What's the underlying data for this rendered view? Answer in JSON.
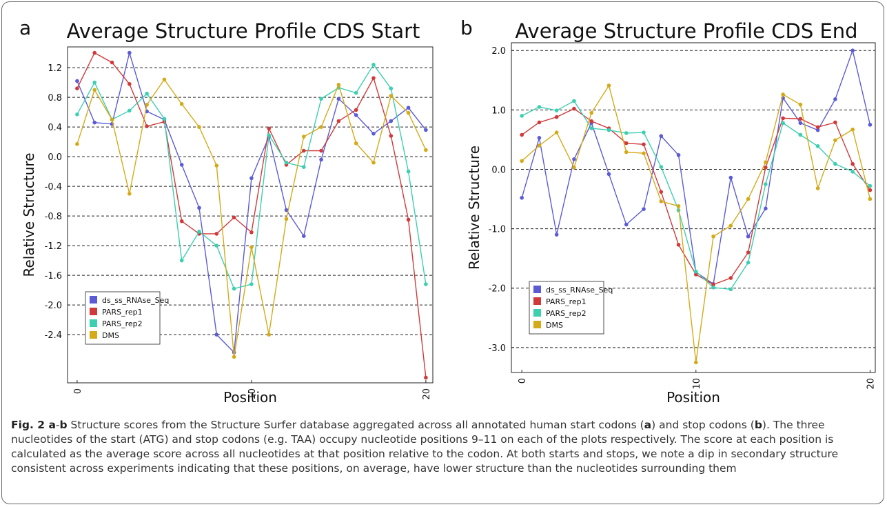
{
  "chart_data": [
    {
      "type": "line",
      "panel_label": "a",
      "title": "Average Structure Profile CDS Start",
      "x_label": "Position",
      "y_label": "Relative Structure",
      "x": [
        0,
        1,
        2,
        3,
        4,
        5,
        6,
        7,
        8,
        9,
        10,
        11,
        12,
        13,
        14,
        15,
        16,
        17,
        18,
        19,
        20
      ],
      "xlim": [
        -0.55,
        20.4
      ],
      "xticks": [
        0,
        10,
        20
      ],
      "ylim": [
        -3.05,
        1.48
      ],
      "yticks": [
        1.2,
        0.8,
        0.4,
        {
          "value": 0,
          "label": "0.0"
        },
        -0.4,
        -0.8,
        -1.2,
        -1.6,
        {
          "value": -2,
          "label": "-2.0"
        },
        -2.4
      ],
      "grid": true,
      "legend": "lower left",
      "series": [
        {
          "name": "ds_ss_RNAse_Seq",
          "color": "#5b5bd6",
          "values": [
            1.02,
            0.46,
            0.44,
            1.4,
            0.61,
            0.5,
            -0.11,
            -0.69,
            -2.4,
            -2.64,
            -0.29,
            0.27,
            -0.72,
            -1.07,
            -0.04,
            0.78,
            0.56,
            0.31,
            0.48,
            0.66,
            0.36
          ]
        },
        {
          "name": "PARS_rep1",
          "color": "#d03a3a",
          "values": [
            0.92,
            1.4,
            1.27,
            0.98,
            0.41,
            0.47,
            -0.87,
            -1.04,
            -1.04,
            -0.82,
            -1.02,
            0.38,
            -0.11,
            0.08,
            0.08,
            0.48,
            0.63,
            1.06,
            0.28,
            -0.85,
            -2.98
          ]
        },
        {
          "name": "PARS_rep2",
          "color": "#3ccfb0",
          "values": [
            0.57,
            1.0,
            0.5,
            0.62,
            0.85,
            0.51,
            -1.4,
            -1.01,
            -1.2,
            -1.78,
            -1.72,
            0.29,
            -0.08,
            -0.14,
            0.78,
            0.93,
            0.86,
            1.24,
            0.92,
            -0.2,
            -1.72
          ]
        },
        {
          "name": "DMS",
          "color": "#d4aa18",
          "values": [
            0.17,
            0.9,
            0.5,
            -0.5,
            0.7,
            1.04,
            0.71,
            0.4,
            -0.12,
            -2.7,
            -1.22,
            -2.4,
            -0.84,
            0.27,
            0.4,
            0.97,
            0.18,
            -0.08,
            0.82,
            0.59,
            0.09
          ]
        }
      ]
    },
    {
      "type": "line",
      "panel_label": "b",
      "title": "Average Structure Profile CDS End",
      "x_label": "Position",
      "y_label": "Relative Structure",
      "x": [
        0,
        1,
        2,
        3,
        4,
        5,
        6,
        7,
        8,
        9,
        10,
        11,
        12,
        13,
        14,
        15,
        16,
        17,
        18,
        19,
        20
      ],
      "xlim": [
        -0.6,
        20.3
      ],
      "xticks": [
        0,
        10,
        20
      ],
      "ylim": [
        -3.42,
        2.13
      ],
      "yticks": [
        {
          "value": 2,
          "label": "2.0"
        },
        {
          "value": 1,
          "label": "1.0"
        },
        {
          "value": 0,
          "label": "0.0"
        },
        {
          "value": -1,
          "label": "-1.0"
        },
        {
          "value": -2,
          "label": "-2.0"
        },
        {
          "value": -3,
          "label": "-3.0"
        }
      ],
      "grid": true,
      "legend": "lower left",
      "series": [
        {
          "name": "ds_ss_RNAse_Seq",
          "color": "#5b5bd6",
          "values": [
            -0.48,
            0.53,
            -1.1,
            0.17,
            0.78,
            -0.08,
            -0.93,
            -0.67,
            0.56,
            0.24,
            -1.73,
            -1.93,
            -0.14,
            -1.13,
            -0.66,
            1.2,
            0.78,
            0.66,
            1.18,
            2.0,
            0.75
          ]
        },
        {
          "name": "PARS_rep1",
          "color": "#d03a3a",
          "values": [
            0.58,
            0.79,
            0.88,
            1.02,
            0.81,
            0.69,
            0.44,
            0.42,
            -0.38,
            -1.27,
            -1.77,
            -1.94,
            -1.83,
            -1.4,
            0.03,
            0.86,
            0.85,
            0.71,
            0.79,
            0.09,
            -0.35
          ]
        },
        {
          "name": "PARS_rep2",
          "color": "#3ccfb0",
          "values": [
            0.9,
            1.05,
            0.99,
            1.15,
            0.69,
            0.66,
            0.61,
            0.62,
            0.04,
            -0.69,
            -1.72,
            -1.99,
            -2.02,
            -1.57,
            -0.25,
            0.78,
            0.58,
            0.39,
            0.09,
            -0.04,
            -0.28
          ]
        },
        {
          "name": "DMS",
          "color": "#d4aa18",
          "values": [
            0.14,
            0.4,
            0.62,
            0.03,
            0.95,
            1.41,
            0.29,
            0.27,
            -0.54,
            -0.62,
            -3.25,
            -1.13,
            -0.95,
            -0.5,
            0.12,
            1.26,
            1.09,
            -0.32,
            0.49,
            0.67,
            -0.5
          ]
        }
      ]
    }
  ],
  "caption": [
    {
      "text": "Fig. 2 a",
      "bold": true
    },
    {
      "text": "-"
    },
    {
      "text": "b",
      "bold": true
    },
    {
      "text": " Structure scores from the Structure Surfer database aggregated across all annotated human start codons ("
    },
    {
      "text": "a",
      "bold": true
    },
    {
      "text": ") and stop codons ("
    },
    {
      "text": "b",
      "bold": true
    },
    {
      "text": "). The three nucleotides of the start (ATG) and stop codons (e.g. TAA) occupy nucleotide positions 9–11 on each of the plots respectively. The score at each position is calculated as the average score across all nucleotides at that position relative to the codon. At both starts and stops, we note a dip in secondary structure consistent across experiments indicating that these positions, on average, have lower structure than the nucleotides surrounding them"
    }
  ]
}
